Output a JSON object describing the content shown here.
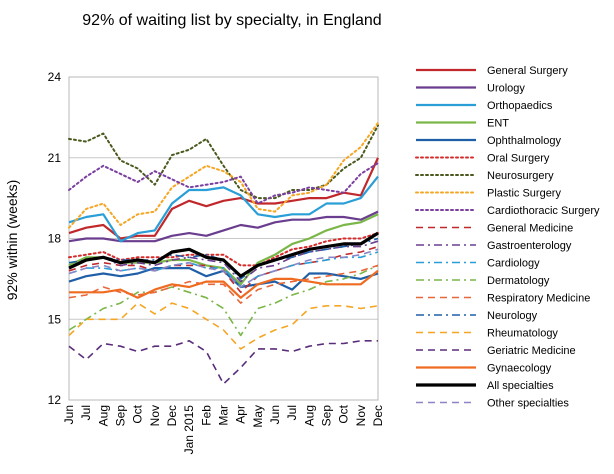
{
  "chart_data": {
    "type": "line",
    "title": "92% of waiting list by specialty, in England",
    "ylabel": "92% within (weeks)",
    "xlabel": "",
    "ylim": [
      12,
      24
    ],
    "yticks": [
      12,
      15,
      18,
      21,
      24
    ],
    "grid": "horizontal",
    "legend_position": "right",
    "x": [
      "Jun",
      "Jul",
      "Aug",
      "Sep",
      "Oct",
      "Nov",
      "Dec",
      "Jan 2015",
      "Feb",
      "Mar",
      "Apr",
      "May",
      "Jun",
      "Jul",
      "Aug",
      "Sep",
      "Oct",
      "Nov",
      "Dec"
    ],
    "series": [
      {
        "name": "General Surgery",
        "color": "#c0282c",
        "dash": "solid",
        "width": 2.2,
        "values": [
          18.2,
          18.4,
          18.5,
          18.0,
          18.1,
          18.1,
          19.1,
          19.4,
          19.2,
          19.4,
          19.5,
          19.3,
          19.3,
          19.4,
          19.5,
          19.5,
          19.7,
          19.6,
          21.0
        ]
      },
      {
        "name": "Urology",
        "color": "#6b3d8f",
        "dash": "solid",
        "width": 2.2,
        "values": [
          17.9,
          18.0,
          18.0,
          17.9,
          17.9,
          17.9,
          18.1,
          18.2,
          18.1,
          18.3,
          18.5,
          18.4,
          18.6,
          18.7,
          18.7,
          18.8,
          18.8,
          18.7,
          19.0
        ]
      },
      {
        "name": "Orthopaedics",
        "color": "#2a9ed6",
        "dash": "solid",
        "width": 2.2,
        "values": [
          18.6,
          18.8,
          18.9,
          17.9,
          18.2,
          18.3,
          19.3,
          19.8,
          19.8,
          19.9,
          19.6,
          18.9,
          18.8,
          18.9,
          18.9,
          19.3,
          19.3,
          19.5,
          20.3
        ]
      },
      {
        "name": "ENT",
        "color": "#7ab648",
        "dash": "solid",
        "width": 2.2,
        "values": [
          17.0,
          17.3,
          17.3,
          17.1,
          17.1,
          17.1,
          17.2,
          17.2,
          17.0,
          16.9,
          16.3,
          17.1,
          17.4,
          17.8,
          18.0,
          18.3,
          18.5,
          18.6,
          18.9
        ]
      },
      {
        "name": "Ophthalmology",
        "color": "#1f5fa8",
        "dash": "solid",
        "width": 2.2,
        "values": [
          16.4,
          16.6,
          16.7,
          16.6,
          16.7,
          16.9,
          16.9,
          16.9,
          16.6,
          16.8,
          16.2,
          16.3,
          16.4,
          16.1,
          16.7,
          16.7,
          16.6,
          16.5,
          16.7
        ]
      },
      {
        "name": "Oral Surgery",
        "color": "#d62b2b",
        "dash": "dot",
        "width": 2,
        "values": [
          17.3,
          17.4,
          17.5,
          17.2,
          17.3,
          17.3,
          17.3,
          17.4,
          17.4,
          17.4,
          17.0,
          17.0,
          17.3,
          17.6,
          17.7,
          17.9,
          18.0,
          18.0,
          18.2
        ]
      },
      {
        "name": "Neurosurgery",
        "color": "#4a5a1e",
        "dash": "dot",
        "width": 2,
        "values": [
          21.7,
          21.6,
          21.9,
          20.9,
          20.6,
          20.0,
          21.1,
          21.3,
          21.7,
          20.7,
          19.8,
          19.5,
          19.5,
          19.8,
          19.8,
          20.0,
          20.6,
          21.0,
          22.2
        ]
      },
      {
        "name": "Plastic Surgery",
        "color": "#f5a623",
        "dash": "dot",
        "width": 2,
        "values": [
          18.4,
          19.1,
          19.3,
          18.5,
          18.9,
          19.0,
          19.9,
          20.3,
          20.7,
          20.5,
          20.1,
          19.1,
          19.0,
          19.6,
          19.7,
          20.0,
          20.9,
          21.4,
          22.3
        ]
      },
      {
        "name": "Cardiothoracic Surgery",
        "color": "#7b3fa0",
        "dash": "dot",
        "width": 2,
        "values": [
          19.8,
          20.3,
          20.7,
          20.4,
          20.1,
          20.5,
          20.2,
          19.9,
          20.0,
          20.1,
          20.3,
          19.3,
          19.6,
          19.7,
          19.9,
          19.8,
          19.7,
          20.4,
          20.8
        ]
      },
      {
        "name": "General Medicine",
        "color": "#c0282c",
        "dash": "dash",
        "width": 1.6,
        "values": [
          16.8,
          17.0,
          17.1,
          17.0,
          17.0,
          16.8,
          17.0,
          17.0,
          17.0,
          16.8,
          16.0,
          16.6,
          16.8,
          17.0,
          17.1,
          17.2,
          17.4,
          17.5,
          17.7
        ]
      },
      {
        "name": "Gastroenterology",
        "color": "#6b3d8f",
        "dash": "dashdot",
        "width": 1.6,
        "values": [
          16.9,
          17.2,
          17.3,
          17.0,
          17.1,
          17.0,
          17.2,
          17.3,
          17.2,
          17.1,
          16.4,
          16.9,
          17.0,
          17.3,
          17.5,
          17.6,
          17.7,
          17.7,
          17.9
        ]
      },
      {
        "name": "Cardiology",
        "color": "#2a9ed6",
        "dash": "dashdot",
        "width": 1.6,
        "values": [
          16.7,
          16.9,
          16.9,
          16.8,
          16.9,
          16.8,
          17.0,
          17.1,
          16.9,
          16.9,
          16.2,
          16.6,
          16.8,
          17.0,
          17.1,
          17.2,
          17.3,
          17.3,
          17.5
        ]
      },
      {
        "name": "Dermatology",
        "color": "#7ab648",
        "dash": "dashdot",
        "width": 1.6,
        "values": [
          14.6,
          15.0,
          15.4,
          15.6,
          16.0,
          16.0,
          16.2,
          16.0,
          15.8,
          15.4,
          14.4,
          15.4,
          15.6,
          15.9,
          16.1,
          16.4,
          16.5,
          16.7,
          17.0
        ]
      },
      {
        "name": "Respiratory Medicine",
        "color": "#e8673a",
        "dash": "dash",
        "width": 1.6,
        "values": [
          15.8,
          15.9,
          16.2,
          16.0,
          15.9,
          16.0,
          16.2,
          16.4,
          16.3,
          16.3,
          15.6,
          16.1,
          16.3,
          16.4,
          16.5,
          16.6,
          16.7,
          16.8,
          17.0
        ]
      },
      {
        "name": "Neurology",
        "color": "#1f5fa8",
        "dash": "dashdot",
        "width": 1.6,
        "values": [
          17.1,
          17.2,
          17.3,
          17.2,
          17.2,
          17.2,
          17.4,
          17.3,
          17.4,
          17.2,
          16.5,
          17.0,
          17.2,
          17.3,
          17.5,
          17.6,
          17.7,
          17.8,
          18.0
        ]
      },
      {
        "name": "Rheumatology",
        "color": "#f5a623",
        "dash": "dash",
        "width": 1.6,
        "values": [
          14.4,
          15.0,
          15.0,
          15.0,
          15.6,
          15.2,
          15.6,
          15.4,
          15.0,
          14.6,
          13.9,
          14.3,
          14.6,
          14.8,
          15.4,
          15.5,
          15.5,
          15.4,
          15.5
        ]
      },
      {
        "name": "Geriatric Medicine",
        "color": "#5a2d7a",
        "dash": "dash",
        "width": 1.6,
        "values": [
          14.0,
          13.5,
          14.1,
          14.0,
          13.8,
          14.0,
          14.0,
          14.2,
          13.8,
          12.6,
          13.2,
          13.9,
          13.9,
          13.8,
          14.0,
          14.1,
          14.1,
          14.2,
          14.2
        ]
      },
      {
        "name": "Gynaecology",
        "color": "#ef6b21",
        "dash": "solid",
        "width": 2.2,
        "values": [
          16.0,
          16.0,
          16.0,
          16.1,
          15.8,
          16.1,
          16.3,
          16.2,
          16.4,
          16.4,
          15.8,
          16.3,
          16.5,
          16.5,
          16.4,
          16.3,
          16.3,
          16.3,
          16.8
        ]
      },
      {
        "name": "All specialties",
        "color": "#000000",
        "dash": "solid",
        "width": 3.2,
        "values": [
          16.9,
          17.2,
          17.3,
          17.1,
          17.2,
          17.1,
          17.5,
          17.6,
          17.3,
          17.2,
          16.6,
          17.0,
          17.2,
          17.4,
          17.6,
          17.7,
          17.8,
          17.8,
          18.2
        ]
      },
      {
        "name": "Other specialties",
        "color": "#8b86c6",
        "dash": "dash",
        "width": 1.6,
        "values": [
          16.7,
          16.9,
          17.0,
          16.8,
          16.9,
          16.8,
          17.0,
          17.1,
          16.9,
          16.8,
          16.2,
          16.6,
          16.8,
          17.0,
          17.2,
          17.3,
          17.3,
          17.4,
          17.6
        ]
      }
    ]
  }
}
